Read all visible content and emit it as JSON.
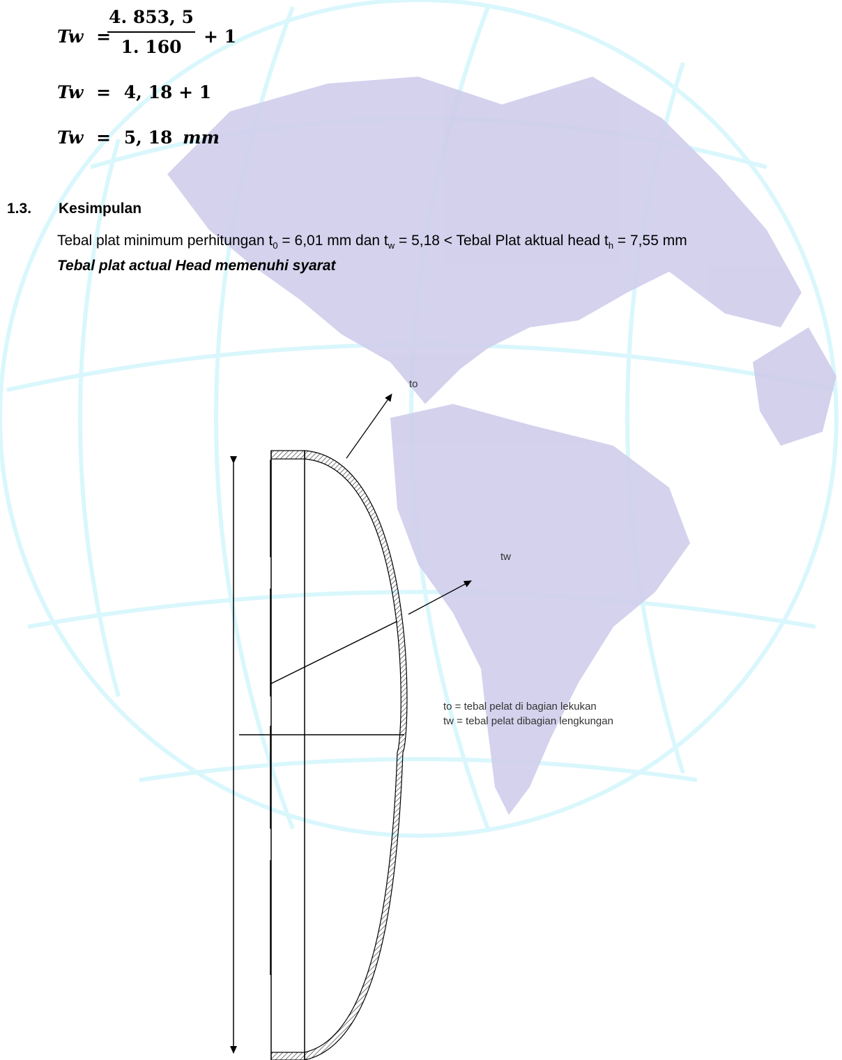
{
  "calc": {
    "lhs": "Tw",
    "eq": "=",
    "numerator": "4. 853, 5",
    "denominator": "1. 160",
    "plus_one": "+ 1",
    "line2_rhs": "4, 18 + 1",
    "line3_value": "5, 18",
    "line3_unit": "mm"
  },
  "section": {
    "number": "1.3.",
    "title": "Kesimpulan"
  },
  "paragraph": {
    "part1": "Tebal plat minimum perhitungan t",
    "sub0": "0",
    "part2": " = 6,01 mm dan t",
    "subw": "w",
    "part3": " = 5,18 < Tebal Plat aktual head t",
    "subh": "h",
    "part4": " = 7,55 mm"
  },
  "conclusion": "Tebal plat actual Head memenuhi syarat",
  "diagram": {
    "label_to": "to",
    "label_tw": "tw",
    "legend_line1": "to = tebal pelat di bagian lekukan",
    "legend_line2": "tw = tebal pelat dibagian lengkungan"
  },
  "colors": {
    "watermark_land": "#cfcdeb",
    "watermark_grid": "#d6f6fb",
    "hatch": "#555555"
  }
}
